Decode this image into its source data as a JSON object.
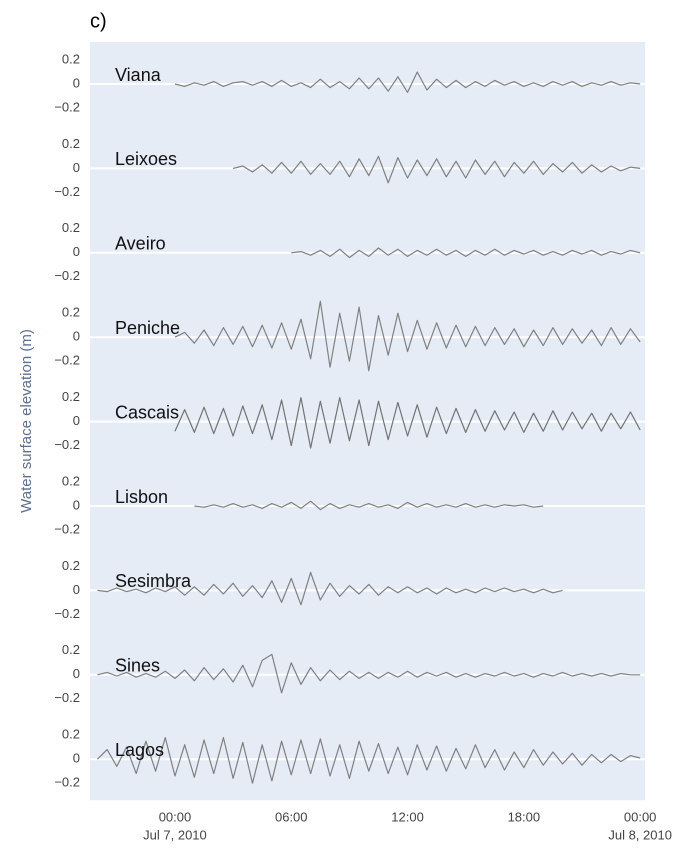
{
  "chart_data": {
    "type": "line",
    "panel_label": "c)",
    "ylabel": "Water surface elevation (m)",
    "xlim": [
      "2010-07-06T19:37",
      "2010-07-08T00:15"
    ],
    "xticks": [
      {
        "value": "2010-07-07T00:00",
        "label": "00:00",
        "date": "Jul 7, 2010"
      },
      {
        "value": "2010-07-07T06:00",
        "label": "06:00"
      },
      {
        "value": "2010-07-07T12:00",
        "label": "12:00"
      },
      {
        "value": "2010-07-07T18:00",
        "label": "18:00"
      },
      {
        "value": "2010-07-08T00:00",
        "label": "00:00",
        "date": "Jul 8, 2010"
      }
    ],
    "ylim": [
      -0.3,
      0.3
    ],
    "yticks": [
      {
        "value": 0.2,
        "label": "0.2"
      },
      0,
      {
        "value": -0.2,
        "label": "−0.2"
      }
    ],
    "zeroline": true,
    "background": "#e5ecf6",
    "x": [
      "2010-07-06T20:00",
      "2010-07-06T20:30",
      "2010-07-06T21:00",
      "2010-07-06T21:30",
      "2010-07-06T22:00",
      "2010-07-06T22:30",
      "2010-07-06T23:00",
      "2010-07-06T23:30",
      "2010-07-07T00:00",
      "2010-07-07T00:30",
      "2010-07-07T01:00",
      "2010-07-07T01:30",
      "2010-07-07T02:00",
      "2010-07-07T02:30",
      "2010-07-07T03:00",
      "2010-07-07T03:30",
      "2010-07-07T04:00",
      "2010-07-07T04:30",
      "2010-07-07T05:00",
      "2010-07-07T05:30",
      "2010-07-07T06:00",
      "2010-07-07T06:30",
      "2010-07-07T07:00",
      "2010-07-07T07:30",
      "2010-07-07T08:00",
      "2010-07-07T08:30",
      "2010-07-07T09:00",
      "2010-07-07T09:30",
      "2010-07-07T10:00",
      "2010-07-07T10:30",
      "2010-07-07T11:00",
      "2010-07-07T11:30",
      "2010-07-07T12:00",
      "2010-07-07T12:30",
      "2010-07-07T13:00",
      "2010-07-07T13:30",
      "2010-07-07T14:00",
      "2010-07-07T14:30",
      "2010-07-07T15:00",
      "2010-07-07T15:30",
      "2010-07-07T16:00",
      "2010-07-07T16:30",
      "2010-07-07T17:00",
      "2010-07-07T17:30",
      "2010-07-07T18:00",
      "2010-07-07T18:30",
      "2010-07-07T19:00",
      "2010-07-07T19:30",
      "2010-07-07T20:00",
      "2010-07-07T20:30",
      "2010-07-07T21:00",
      "2010-07-07T21:30",
      "2010-07-07T22:00",
      "2010-07-07T22:30",
      "2010-07-07T23:00",
      "2010-07-07T23:30",
      "2010-07-08T00:00"
    ],
    "series": [
      {
        "name": "Viana",
        "color": "#808080",
        "values": [
          null,
          null,
          null,
          null,
          null,
          null,
          null,
          null,
          0,
          -0.02,
          0.01,
          -0.01,
          0.02,
          -0.02,
          0.01,
          0.02,
          -0.01,
          0.02,
          -0.02,
          0.03,
          -0.02,
          0.01,
          -0.03,
          0.04,
          -0.03,
          0.02,
          -0.04,
          0.05,
          -0.04,
          0.05,
          -0.06,
          0.06,
          -0.07,
          0.1,
          -0.05,
          0.04,
          -0.03,
          0.03,
          -0.03,
          0.02,
          -0.02,
          0.03,
          -0.01,
          0.02,
          -0.02,
          0.01,
          -0.02,
          0.02,
          -0.01,
          0.02,
          -0.02,
          0.01,
          -0.01,
          0.02,
          -0.01,
          0.01,
          0
        ]
      },
      {
        "name": "Leixoes",
        "color": "#808080",
        "values": [
          null,
          null,
          null,
          null,
          null,
          null,
          null,
          null,
          null,
          null,
          null,
          null,
          null,
          null,
          0,
          0.02,
          -0.03,
          0.03,
          -0.04,
          0.05,
          -0.04,
          0.06,
          -0.05,
          0.04,
          -0.05,
          0.06,
          -0.07,
          0.08,
          -0.06,
          0.1,
          -0.12,
          0.09,
          -0.08,
          0.07,
          -0.06,
          0.08,
          -0.07,
          0.06,
          -0.08,
          0.07,
          -0.05,
          0.06,
          -0.07,
          0.05,
          -0.04,
          0.06,
          -0.05,
          0.04,
          -0.03,
          0.05,
          -0.04,
          0.03,
          -0.03,
          0.02,
          -0.02,
          0.01,
          0
        ]
      },
      {
        "name": "Aveiro",
        "color": "#808080",
        "values": [
          null,
          null,
          null,
          null,
          null,
          null,
          null,
          null,
          null,
          null,
          null,
          null,
          null,
          null,
          null,
          null,
          null,
          null,
          null,
          null,
          0,
          0.01,
          -0.02,
          0.02,
          -0.03,
          0.03,
          -0.04,
          0.02,
          -0.03,
          0.04,
          -0.02,
          0.03,
          -0.03,
          0.02,
          -0.02,
          0.03,
          -0.02,
          0.02,
          -0.03,
          0.02,
          -0.02,
          0.03,
          -0.02,
          0.02,
          -0.01,
          0.02,
          -0.02,
          0.01,
          -0.02,
          0.02,
          -0.01,
          0.02,
          -0.02,
          0.01,
          -0.01,
          0.02,
          0
        ]
      },
      {
        "name": "Peniche",
        "color": "#808080",
        "values": [
          null,
          null,
          null,
          null,
          null,
          null,
          null,
          null,
          0,
          0.04,
          -0.05,
          0.06,
          -0.07,
          0.08,
          -0.06,
          0.09,
          -0.08,
          0.1,
          -0.09,
          0.12,
          -0.1,
          0.15,
          -0.18,
          0.3,
          -0.25,
          0.2,
          -0.2,
          0.25,
          -0.28,
          0.18,
          -0.15,
          0.2,
          -0.12,
          0.14,
          -0.1,
          0.12,
          -0.09,
          0.1,
          -0.08,
          0.09,
          -0.07,
          0.08,
          -0.06,
          0.07,
          -0.08,
          0.06,
          -0.07,
          0.08,
          -0.06,
          0.07,
          -0.05,
          0.06,
          -0.07,
          0.08,
          -0.06,
          0.07,
          -0.04
        ]
      },
      {
        "name": "Cascais",
        "color": "#737373",
        "values": [
          null,
          null,
          null,
          null,
          null,
          null,
          null,
          null,
          -0.08,
          0.1,
          -0.09,
          0.12,
          -0.1,
          0.11,
          -0.12,
          0.13,
          -0.1,
          0.14,
          -0.15,
          0.18,
          -0.2,
          0.2,
          -0.22,
          0.17,
          -0.18,
          0.2,
          -0.16,
          0.18,
          -0.2,
          0.17,
          -0.15,
          0.16,
          -0.12,
          0.14,
          -0.13,
          0.12,
          -0.1,
          0.11,
          -0.09,
          0.1,
          -0.08,
          0.09,
          -0.07,
          0.08,
          -0.09,
          0.07,
          -0.08,
          0.09,
          -0.07,
          0.08,
          -0.06,
          0.07,
          -0.08,
          0.07,
          -0.06,
          0.08,
          -0.07
        ]
      },
      {
        "name": "Lisbon",
        "color": "#808080",
        "values": [
          null,
          null,
          null,
          null,
          null,
          null,
          null,
          null,
          null,
          null,
          0,
          -0.01,
          0.01,
          -0.01,
          0.02,
          -0.01,
          0.01,
          -0.02,
          0.02,
          -0.01,
          0.03,
          -0.02,
          0.04,
          -0.03,
          0.02,
          -0.02,
          0.01,
          -0.01,
          0.02,
          -0.01,
          0.01,
          -0.02,
          0.03,
          -0.01,
          0.02,
          -0.01,
          0.01,
          -0.01,
          0.02,
          -0.01,
          0.01,
          -0.01,
          0.01,
          0,
          0.01,
          -0.01,
          0,
          null,
          null,
          null,
          null,
          null,
          null,
          null,
          null,
          null,
          null
        ]
      },
      {
        "name": "Sesimbra",
        "color": "#808080",
        "values": [
          0,
          -0.01,
          0.02,
          -0.01,
          0.01,
          -0.02,
          0.02,
          -0.01,
          0.03,
          -0.04,
          0.03,
          -0.04,
          0.05,
          -0.03,
          0.06,
          -0.05,
          0.04,
          -0.06,
          0.08,
          -0.1,
          0.1,
          -0.12,
          0.15,
          -0.08,
          0.06,
          -0.05,
          0.04,
          -0.03,
          0.05,
          -0.04,
          0.03,
          -0.02,
          0.03,
          -0.02,
          0.02,
          -0.03,
          0.02,
          -0.02,
          0.01,
          -0.02,
          0.02,
          -0.01,
          0.02,
          -0.01,
          0.01,
          -0.02,
          0.01,
          -0.02,
          0,
          null,
          null,
          null,
          null,
          null,
          null,
          null,
          null
        ]
      },
      {
        "name": "Sines",
        "color": "#808080",
        "values": [
          0,
          0.02,
          -0.01,
          0.02,
          -0.02,
          0.01,
          -0.02,
          0.03,
          -0.03,
          0.04,
          -0.05,
          0.06,
          -0.04,
          0.05,
          -0.06,
          0.08,
          -0.1,
          0.12,
          0.17,
          -0.15,
          0.1,
          -0.08,
          0.06,
          -0.05,
          0.04,
          -0.04,
          0.03,
          -0.03,
          0.02,
          -0.03,
          0.02,
          -0.02,
          0.03,
          -0.02,
          0.02,
          -0.01,
          0.02,
          -0.02,
          0.01,
          -0.02,
          0.01,
          -0.01,
          0.02,
          -0.01,
          0.01,
          -0.02,
          0.01,
          -0.01,
          0.02,
          -0.01,
          0.01,
          -0.01,
          0.01,
          -0.01,
          0.01,
          0,
          0
        ]
      },
      {
        "name": "Lagos",
        "color": "#808080",
        "values": [
          0,
          0.08,
          -0.06,
          0.1,
          -0.12,
          0.15,
          -0.1,
          0.18,
          -0.14,
          0.12,
          -0.15,
          0.16,
          -0.12,
          0.18,
          -0.16,
          0.14,
          -0.2,
          0.12,
          -0.18,
          0.15,
          -0.13,
          0.16,
          -0.12,
          0.17,
          -0.14,
          0.12,
          -0.16,
          0.15,
          -0.1,
          0.13,
          -0.12,
          0.1,
          -0.13,
          0.12,
          -0.09,
          0.11,
          -0.1,
          0.09,
          -0.08,
          0.12,
          -0.07,
          0.08,
          -0.09,
          0.06,
          -0.07,
          0.08,
          -0.05,
          0.06,
          -0.04,
          0.05,
          -0.05,
          0.04,
          -0.03,
          0.04,
          -0.02,
          0.03,
          0.01
        ]
      }
    ]
  }
}
